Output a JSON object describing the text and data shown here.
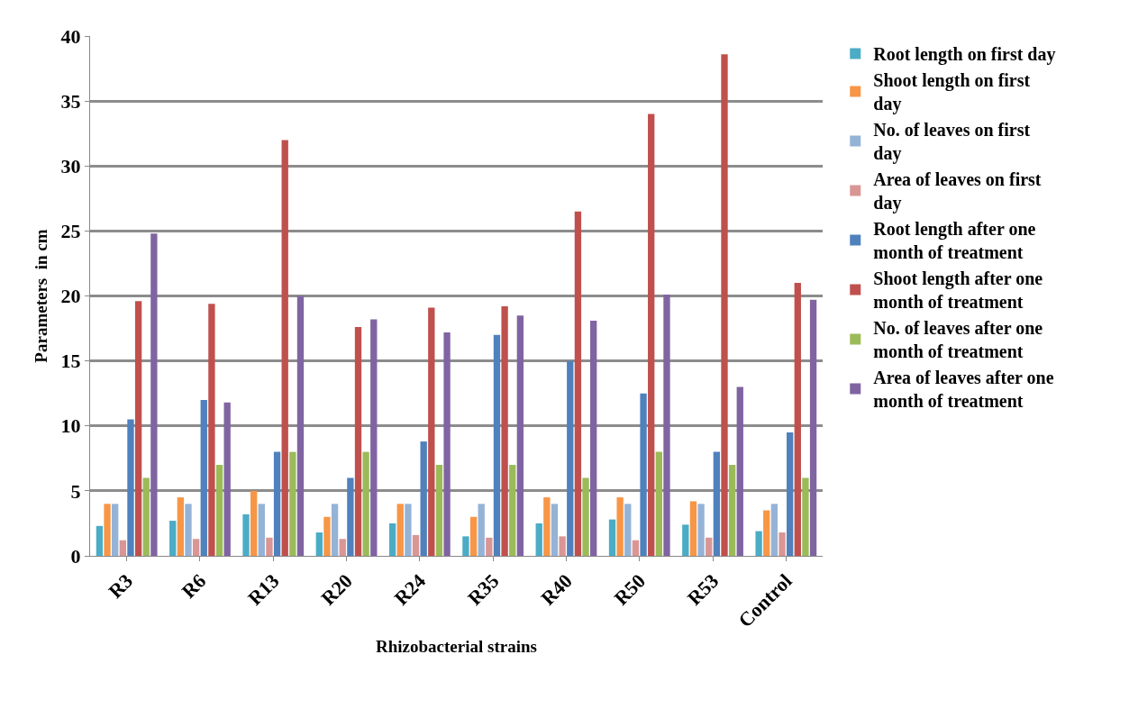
{
  "chart_data": {
    "type": "bar",
    "xlabel": "Rhizobacterial strains",
    "ylabel": "Parameters  in cm",
    "categories": [
      "R3",
      "R6",
      "R13",
      "R20",
      "R24",
      "R35",
      "R40",
      "R50",
      "R53",
      "Control"
    ],
    "series": [
      {
        "name": "Root length on first day",
        "color": "#4bacc6",
        "values": [
          2.3,
          2.7,
          3.2,
          1.8,
          2.5,
          1.5,
          2.5,
          2.8,
          2.4,
          1.9
        ]
      },
      {
        "name": "Shoot length on first day",
        "color": "#f79646",
        "values": [
          4,
          4.5,
          5,
          3,
          4,
          3,
          4.5,
          4.5,
          4.2,
          3.5
        ]
      },
      {
        "name": "No. of leaves on first day",
        "color": "#95b3d7",
        "values": [
          4,
          4,
          4,
          4,
          4,
          4,
          4,
          4,
          4,
          4
        ]
      },
      {
        "name": "Area of leaves on first day",
        "color": "#d99694",
        "values": [
          1.2,
          1.3,
          1.4,
          1.3,
          1.6,
          1.4,
          1.5,
          1.2,
          1.4,
          1.8
        ]
      },
      {
        "name": "Root length after one month of treatment",
        "color": "#4f81bd",
        "values": [
          10.5,
          12,
          8,
          6,
          8.8,
          17,
          15,
          12.5,
          8,
          9.5
        ]
      },
      {
        "name": "Shoot length after one month of treatment",
        "color": "#c0504d",
        "values": [
          19.6,
          19.4,
          32,
          17.6,
          19.1,
          19.2,
          26.5,
          34,
          38.6,
          21
        ]
      },
      {
        "name": "No. of leaves after one month of treatment",
        "color": "#9bbb59",
        "values": [
          6,
          7,
          8,
          8,
          7,
          7,
          6,
          8,
          7,
          6
        ]
      },
      {
        "name": "Area of leaves after one month of treatment",
        "color": "#8064a2",
        "values": [
          24.8,
          11.8,
          20,
          18.2,
          17.2,
          18.5,
          18.1,
          20.1,
          13,
          19.7
        ]
      }
    ],
    "ylim": [
      0,
      40
    ],
    "yticks": [
      0,
      5,
      10,
      15,
      20,
      25,
      30,
      35,
      40
    ],
    "grid": "y",
    "legend": "right"
  }
}
